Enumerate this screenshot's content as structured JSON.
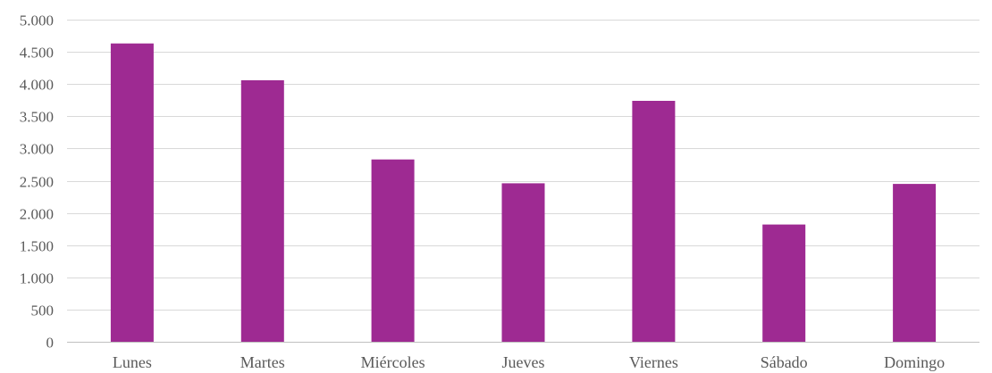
{
  "chart_data": {
    "type": "bar",
    "title": "",
    "xlabel": "",
    "ylabel": "",
    "categories": [
      "Lunes",
      "Martes",
      "Miércoles",
      "Jueves",
      "Viernes",
      "Sábado",
      "Domingo"
    ],
    "values": [
      4630,
      4060,
      2830,
      2460,
      3740,
      1820,
      2450
    ],
    "ylim": [
      0,
      5000
    ],
    "yticks": [
      0,
      500,
      1000,
      1500,
      2000,
      2500,
      3000,
      3500,
      4000,
      4500,
      5000
    ],
    "ytick_labels": [
      "0",
      "500",
      "1.000",
      "1.500",
      "2.000",
      "2.500",
      "3.000",
      "3.500",
      "4.000",
      "4.500",
      "5.000"
    ],
    "grid": true,
    "legend": "none",
    "bar_color": "#9e2a92"
  }
}
